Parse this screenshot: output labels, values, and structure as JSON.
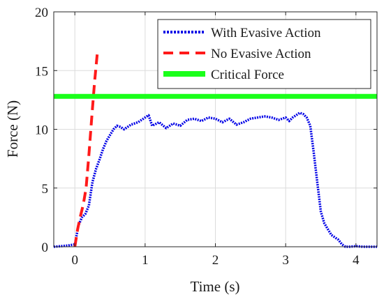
{
  "chart_data": {
    "type": "line",
    "title": "",
    "xlabel": "Time (s)",
    "ylabel": "Force (N)",
    "xlim": [
      -0.3,
      4.3
    ],
    "ylim": [
      0,
      20
    ],
    "xticks": [
      0,
      1,
      2,
      3,
      4
    ],
    "yticks": [
      0,
      5,
      10,
      15,
      20
    ],
    "grid": true,
    "legend_position": "top-right",
    "series": [
      {
        "name": "With Evasive Action",
        "color": "#0000e6",
        "style": "dotted",
        "x": [
          -0.3,
          -0.1,
          0.0,
          0.02,
          0.05,
          0.1,
          0.15,
          0.2,
          0.25,
          0.3,
          0.35,
          0.4,
          0.45,
          0.5,
          0.55,
          0.6,
          0.65,
          0.7,
          0.8,
          0.9,
          1.0,
          1.05,
          1.1,
          1.2,
          1.3,
          1.4,
          1.5,
          1.6,
          1.7,
          1.8,
          1.9,
          2.0,
          2.1,
          2.2,
          2.3,
          2.4,
          2.5,
          2.6,
          2.7,
          2.8,
          2.9,
          3.0,
          3.05,
          3.1,
          3.2,
          3.25,
          3.3,
          3.35,
          3.4,
          3.45,
          3.5,
          3.55,
          3.6,
          3.65,
          3.7,
          3.75,
          3.8,
          3.85,
          3.9,
          4.0,
          4.1,
          4.3
        ],
        "y": [
          0.0,
          0.1,
          0.2,
          0.8,
          1.8,
          2.5,
          2.8,
          3.5,
          5.5,
          6.6,
          7.4,
          8.3,
          9.0,
          9.5,
          10.0,
          10.3,
          10.2,
          10.0,
          10.4,
          10.6,
          11.0,
          11.2,
          10.3,
          10.6,
          10.1,
          10.5,
          10.3,
          10.8,
          10.9,
          10.7,
          11.0,
          10.9,
          10.6,
          10.9,
          10.4,
          10.6,
          10.9,
          11.0,
          11.1,
          11.0,
          10.8,
          11.0,
          10.7,
          11.0,
          11.4,
          11.3,
          11.0,
          10.3,
          8.0,
          5.5,
          3.0,
          2.0,
          1.5,
          1.0,
          0.8,
          0.6,
          0.2,
          0.0,
          0.0,
          0.05,
          0.0,
          0.0
        ]
      },
      {
        "name": "No Evasive Action",
        "color": "#ff1a1a",
        "style": "dashed",
        "x": [
          0.0,
          0.04,
          0.08,
          0.12,
          0.16,
          0.2,
          0.24,
          0.28,
          0.32
        ],
        "y": [
          0.0,
          1.5,
          2.6,
          3.6,
          5.0,
          7.8,
          11.0,
          14.0,
          16.5
        ]
      },
      {
        "name": "Critical Force",
        "color": "#1aff1a",
        "style": "solid",
        "x": [
          -0.3,
          4.3
        ],
        "y": [
          12.8,
          12.8
        ]
      }
    ]
  }
}
